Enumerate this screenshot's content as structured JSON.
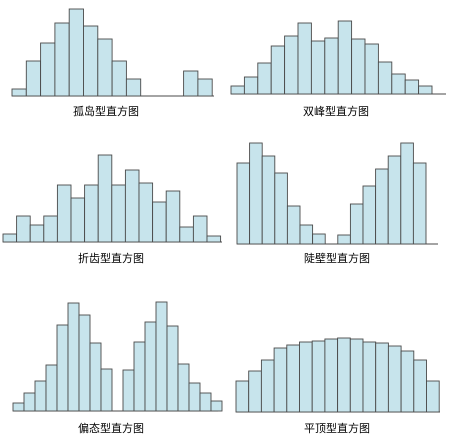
{
  "panels": [
    {
      "id": "isolated-island",
      "caption": "孤岛型直方图",
      "bar_heights": [
        7,
        35,
        53,
        73,
        87,
        70,
        57,
        35,
        17,
        0,
        0,
        0,
        25,
        17
      ],
      "gap_after_index": 8
    },
    {
      "id": "double-peak",
      "caption": "双峰型直方图",
      "bar_heights": [
        8,
        17,
        31,
        48,
        58,
        71,
        53,
        56,
        73,
        55,
        50,
        32,
        20,
        14,
        8
      ]
    },
    {
      "id": "sawtooth",
      "caption": "折齿型直方图",
      "bar_heights": [
        8,
        26,
        17,
        26,
        57,
        44,
        57,
        87,
        57,
        72,
        59,
        40,
        51,
        15,
        26,
        6
      ]
    },
    {
      "id": "cliff",
      "caption": "陡壁型直方图",
      "bar_heights": [
        81,
        101,
        88,
        71,
        38,
        19,
        10,
        0,
        9,
        40,
        58,
        75,
        88,
        101,
        81
      ],
      "gap_index": 7
    },
    {
      "id": "skewed",
      "caption": "偏态型直方图",
      "bar_heights": [
        8,
        18,
        30,
        46,
        86,
        108,
        96,
        68,
        42,
        0,
        41,
        69,
        89,
        109,
        85,
        47,
        28,
        18,
        10
      ],
      "gap_index": 9
    },
    {
      "id": "flat-top",
      "caption": "平顶型直方图",
      "bar_heights": [
        31,
        41,
        52,
        64,
        67,
        70,
        71,
        73,
        74,
        73,
        70,
        69,
        66,
        61,
        52,
        31
      ]
    }
  ],
  "colors": {
    "bar_fill": "#c7e4ec",
    "bar_stroke": "#4a4a4a"
  }
}
